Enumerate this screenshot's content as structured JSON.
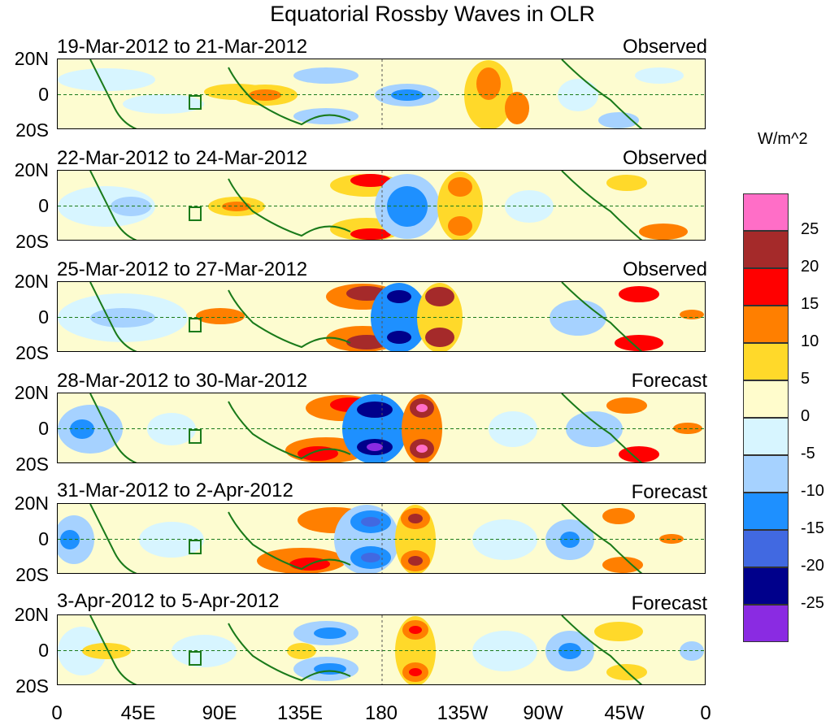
{
  "title": "Equatorial Rossby Waves in OLR",
  "x_ticks": [
    "0",
    "45E",
    "90E",
    "135E",
    "180",
    "135W",
    "90W",
    "45W",
    "0"
  ],
  "y_ticks": [
    "20N",
    "0",
    "20S"
  ],
  "colorbar": {
    "units": "W/m^2",
    "labels": [
      "25",
      "20",
      "15",
      "10",
      "5",
      "0",
      "-5",
      "-10",
      "-15",
      "-20",
      "-25"
    ],
    "colors": [
      "#ff6ec7",
      "#a52a2a",
      "#ff0000",
      "#ff7f00",
      "#ffd92a",
      "#fffccc",
      "#d7f5ff",
      "#a6d2ff",
      "#1e90ff",
      "#4169e1",
      "#00008b",
      "#8a2be2"
    ]
  },
  "panels": [
    {
      "label": "19-Mar-2012 to 21-Mar-2012",
      "status": "Observed"
    },
    {
      "label": "22-Mar-2012 to 24-Mar-2012",
      "status": "Observed"
    },
    {
      "label": "25-Mar-2012 to 27-Mar-2012",
      "status": "Observed"
    },
    {
      "label": "28-Mar-2012 to 30-Mar-2012",
      "status": "Forecast"
    },
    {
      "label": "31-Mar-2012 to 2-Apr-2012",
      "status": "Forecast"
    },
    {
      "label": "3-Apr-2012 to 5-Apr-2012",
      "status": "Forecast"
    }
  ]
}
